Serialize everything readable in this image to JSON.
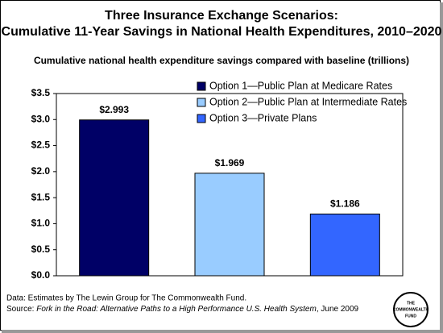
{
  "chart_data": {
    "type": "bar",
    "title": [
      "Three Insurance Exchange Scenarios:",
      "Cumulative 11-Year Savings in National Health Expenditures, 2010–2020"
    ],
    "subtitle": "Cumulative national health expenditure savings compared with baseline (trillions)",
    "series": [
      {
        "name": "Option 1—Public Plan at Medicare Rates",
        "color": "#000066",
        "values": [
          2.993
        ],
        "value_labels": [
          "$2.993"
        ]
      },
      {
        "name": "Option 2—Public Plan at Intermediate Rates",
        "color": "#99ccff",
        "values": [
          1.969
        ],
        "value_labels": [
          "$1.969"
        ]
      },
      {
        "name": "Option 3—Private Plans",
        "color": "#3366ff",
        "values": [
          1.186
        ],
        "value_labels": [
          "$1.186"
        ]
      }
    ],
    "ylim": [
      0,
      3.5
    ],
    "yticks": [
      {
        "value": 0,
        "label": "$0.0"
      },
      {
        "value": 0.5,
        "label": "$0.5"
      },
      {
        "value": 1,
        "label": "$1.0"
      },
      {
        "value": 1.5,
        "label": "$1.5"
      },
      {
        "value": 2,
        "label": "$2.0"
      },
      {
        "value": 2.5,
        "label": "$2.5"
      },
      {
        "value": 3,
        "label": "$3.0"
      },
      {
        "value": 3.5,
        "label": "$3.5"
      }
    ],
    "grid": false,
    "legend": "top-right",
    "notes": {
      "data": "Data: Estimates by The Lewin Group for The Commonwealth Fund.",
      "source": [
        "Source: ",
        "Fork in the Road: Alternative Paths to a High Performance U.S. Health System",
        ", June 2009"
      ]
    },
    "logo": [
      "THE",
      "COMMONWEALTH",
      "FUND"
    ]
  }
}
